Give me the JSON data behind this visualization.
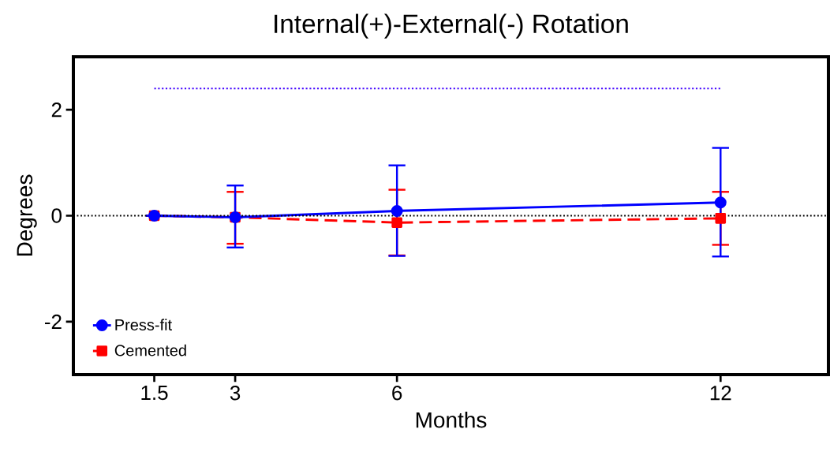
{
  "chart_data": {
    "type": "line",
    "title": "Internal(+)-External(-) Rotation",
    "xlabel": "Months",
    "ylabel": "Degrees",
    "x": [
      1.5,
      3,
      6,
      12
    ],
    "series": [
      {
        "name": "Press-fit",
        "color": "#0000ff",
        "marker": "circle",
        "line_style": "solid",
        "values": [
          0,
          -0.03,
          0.09,
          0.25
        ],
        "errors": [
          null,
          [
            -0.6,
            0.57
          ],
          [
            -0.76,
            0.95
          ],
          [
            -0.77,
            1.28
          ]
        ]
      },
      {
        "name": "Cemented",
        "color": "#ff0000",
        "marker": "square",
        "line_style": "dashed",
        "values": [
          0,
          -0.03,
          -0.13,
          -0.05
        ],
        "errors": [
          null,
          [
            -0.53,
            0.45
          ],
          0.62,
          [
            -0.55,
            0.45
          ]
        ]
      },
      {
        "x": [
          1.5,
          12
        ],
        "color": "#4000ff",
        "marker": "none",
        "line_style": "dotted",
        "values": [
          2.4,
          2.4
        ]
      }
    ],
    "ref_lines": [
      {
        "axis": "y",
        "value": 0,
        "color": "#000000",
        "line_style": "dotted"
      }
    ],
    "xlim": [
      0,
      14
    ],
    "ylim": [
      -3,
      3
    ],
    "xticks": [
      1.5,
      3,
      6,
      12
    ],
    "yticks": [
      -2,
      0,
      2
    ],
    "grid": false,
    "legend": "bottom left"
  }
}
